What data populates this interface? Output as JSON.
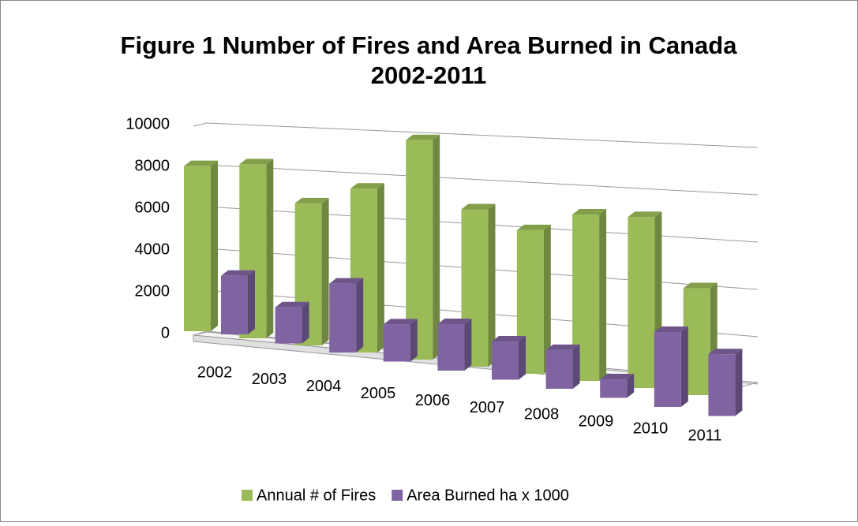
{
  "chart_data": {
    "type": "bar3d",
    "title": "Figure 1 Number of Fires and Area Burned in Canada 2002-2011",
    "categories": [
      "2002",
      "2003",
      "2004",
      "2005",
      "2006",
      "2007",
      "2008",
      "2009",
      "2010",
      "2011"
    ],
    "series": [
      {
        "name": "Annual # of Fires",
        "color": "#9bbb59",
        "values": [
          7900,
          8200,
          6600,
          7500,
          9900,
          7000,
          6300,
          7200,
          7300,
          4500
        ]
      },
      {
        "name": "Area Burned ha x 1000",
        "color": "#8064a2",
        "values": [
          2800,
          1700,
          3200,
          1700,
          2100,
          1700,
          1700,
          800,
          3200,
          2600
        ]
      }
    ],
    "ylim": [
      0,
      10000
    ],
    "yticks": [
      0,
      2000,
      4000,
      6000,
      8000,
      10000
    ],
    "grid": true,
    "legend": "bottom"
  }
}
